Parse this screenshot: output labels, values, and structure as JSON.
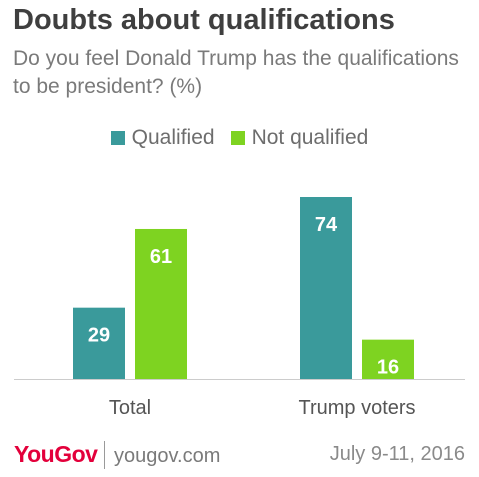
{
  "chart_data": {
    "type": "bar",
    "title": "Doubts about qualifications",
    "subtitle": "Do you feel Donald Trump has the qualifications to be president? (%)",
    "categories": [
      "Total",
      "Trump voters"
    ],
    "series": [
      {
        "name": "Qualified",
        "values": [
          29,
          74
        ],
        "color": "#3a9a9b"
      },
      {
        "name": "Not qualified",
        "values": [
          61,
          16
        ],
        "color": "#7ed321"
      }
    ],
    "ylim": [
      0,
      100
    ],
    "legend_position": "top",
    "grid": false
  },
  "footer": {
    "brand": "YouGov",
    "site": "yougov.com",
    "date": "July 9-11, 2016"
  }
}
